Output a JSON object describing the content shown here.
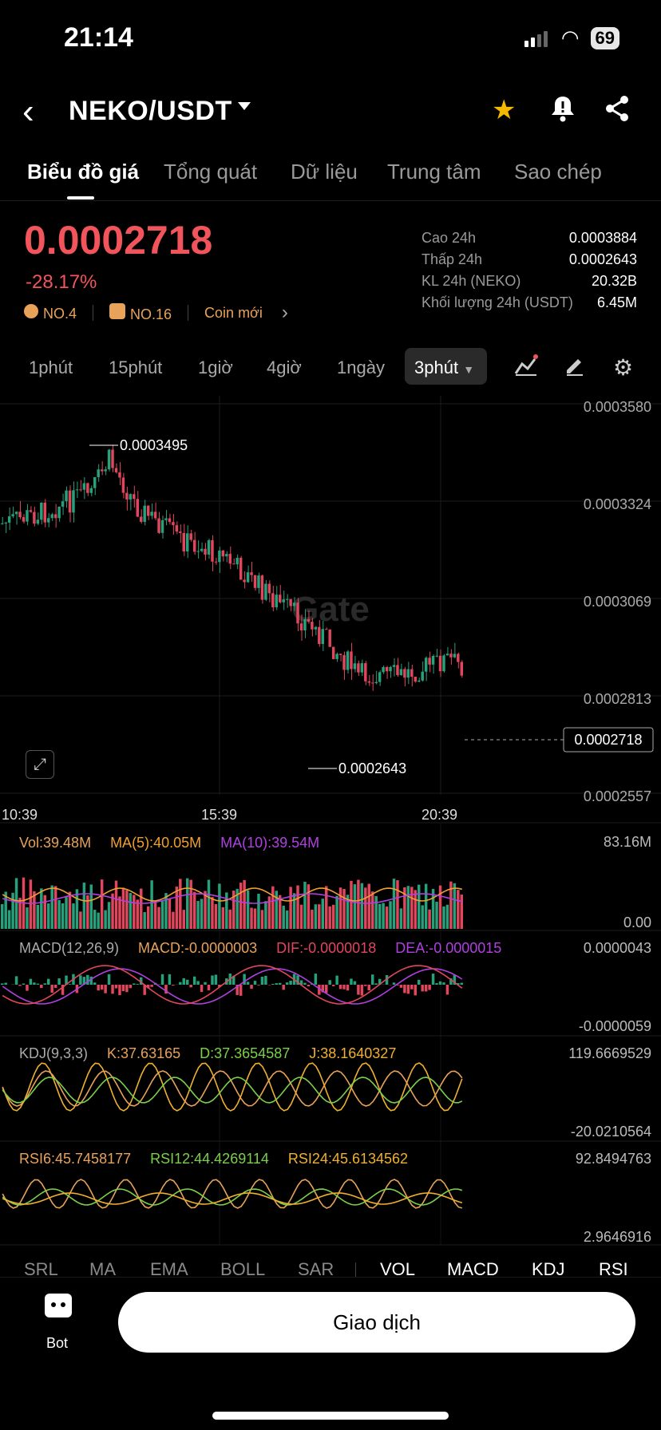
{
  "status": {
    "time": "21:14",
    "battery": "69"
  },
  "nav": {
    "pair": "NEKO/USDT"
  },
  "tabs": [
    "Biểu đồ giá",
    "Tổng quát",
    "Dữ liệu",
    "Trung tâm",
    "Sao chép"
  ],
  "ticker": {
    "price": "0.0002718",
    "change": "-28.17%",
    "tag1": "NO.4",
    "tag2": "NO.16",
    "tag3": "Coin mới",
    "stats": [
      {
        "label": "Cao 24h",
        "value": "0.0003884"
      },
      {
        "label": "Thấp 24h",
        "value": "0.0002643"
      },
      {
        "label": "KL 24h (NEKO)",
        "value": "20.32B"
      },
      {
        "label": "Khối lượng 24h (USDT)",
        "value": "6.45M"
      }
    ]
  },
  "intervals": [
    "1phút",
    "15phút",
    "1giờ",
    "4giờ",
    "1ngày"
  ],
  "interval_active": "3phút",
  "chart": {
    "y_ticks": [
      "0.0003580",
      "0.0003324",
      "0.0003069",
      "0.0002813",
      "0.0002557"
    ],
    "x_ticks": [
      "10:39",
      "15:39",
      "20:39"
    ],
    "high_label": "0.0003495",
    "low_label": "0.0002643",
    "last_price": "0.0002718",
    "watermark": "Gate"
  },
  "vol": {
    "label": "Vol:39.48M",
    "ma5": "MA(5):40.05M",
    "ma10": "MA(10):39.54M",
    "max": "83.16M",
    "min": "0.00"
  },
  "macd": {
    "label": "MACD(12,26,9)",
    "macd": "MACD:-0.0000003",
    "dif": "DIF:-0.0000018",
    "dea": "DEA:-0.0000015",
    "max": "0.0000043",
    "min": "-0.0000059"
  },
  "kdj": {
    "label": "KDJ(9,3,3)",
    "k": "K:37.63165",
    "d": "D:37.3654587",
    "j": "J:38.1640327",
    "max": "119.6669529",
    "min": "-20.0210564"
  },
  "rsi": {
    "r6": "RSI6:45.7458177",
    "r12": "RSI12:44.4269114",
    "r24": "RSI24:45.6134562",
    "max": "92.8494763",
    "min": "2.9646916"
  },
  "indicator_tabs": [
    "SRL",
    "MA",
    "EMA",
    "BOLL",
    "SAR",
    "VOL",
    "MACD",
    "KDJ",
    "RSI"
  ],
  "bottom": {
    "bot_label": "Bot",
    "trade_label": "Giao dịch"
  },
  "colors": {
    "up": "#26a17b",
    "down": "#e0475c",
    "accent": "#e8a25a",
    "ma5": "#f0a030",
    "ma10": "#b040e0"
  }
}
